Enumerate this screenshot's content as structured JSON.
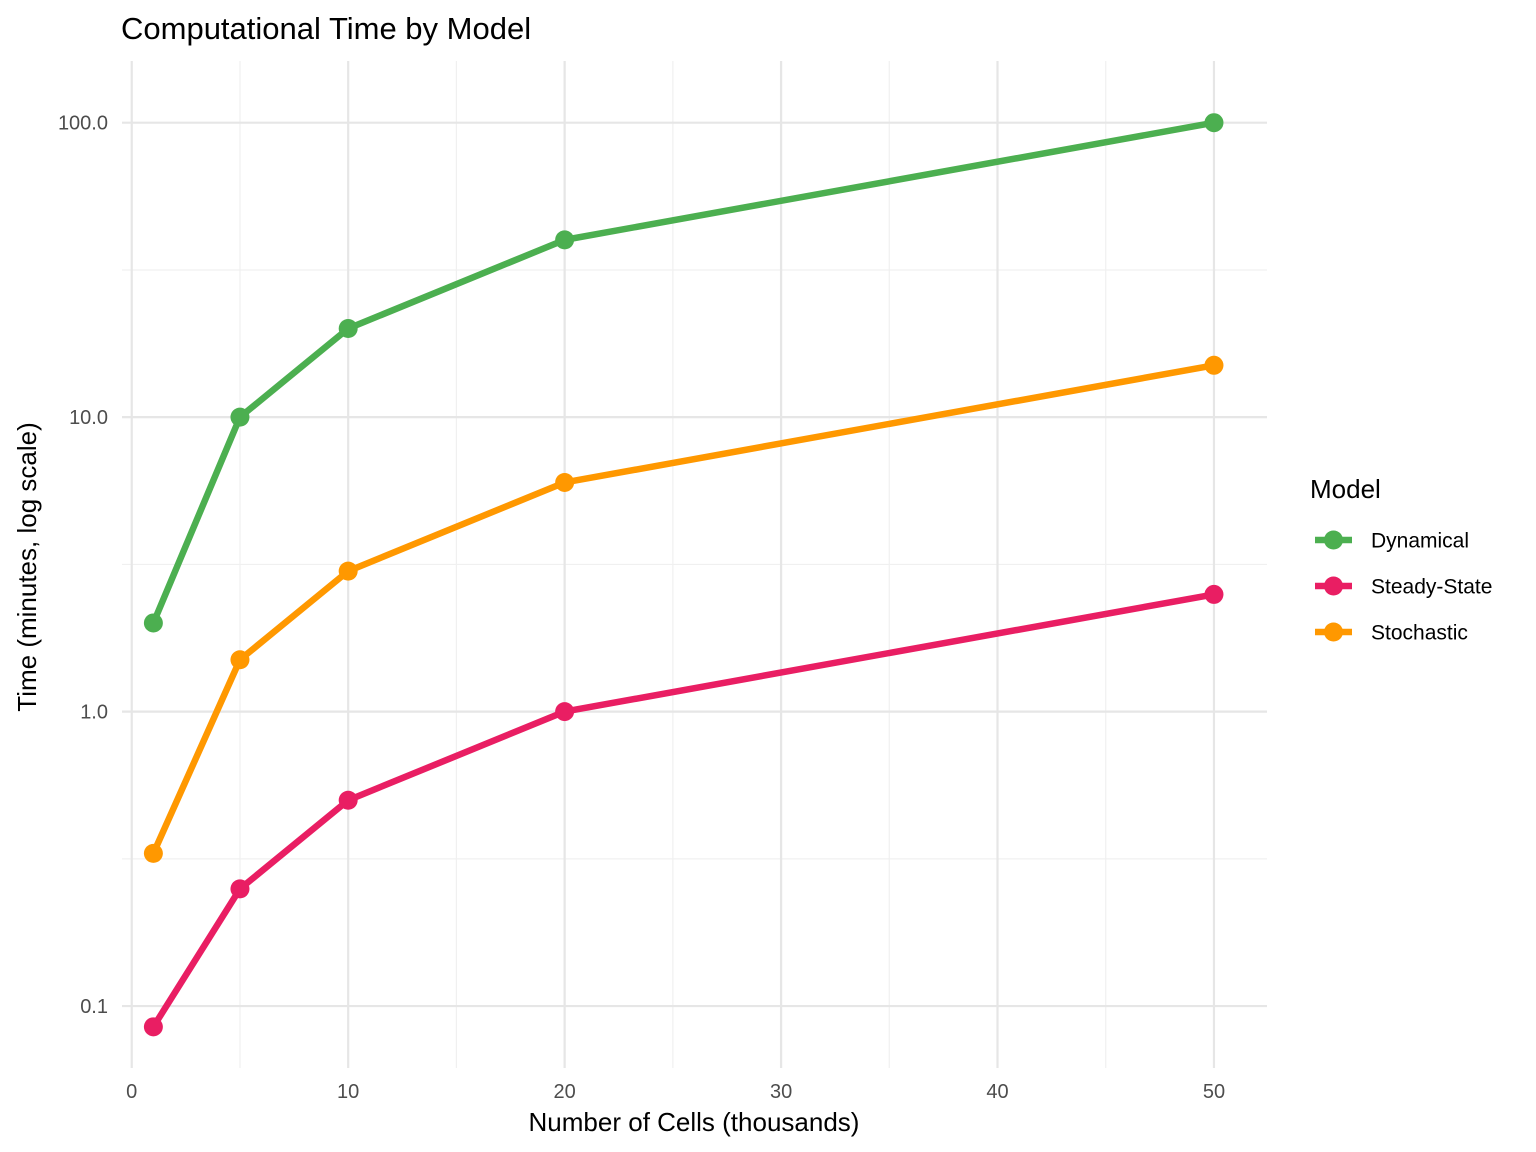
{
  "chart_data": {
    "type": "line",
    "title": "Computational Time by Model",
    "xlabel": "Number of Cells (thousands)",
    "ylabel": "Time (minutes, log scale)",
    "y_scale": "log10",
    "xlim": [
      -0.45,
      52.45
    ],
    "ylim": [
      0.0616,
      162
    ],
    "x_ticks": [
      0,
      10,
      20,
      30,
      40,
      50
    ],
    "x_tick_labels": [
      "0",
      "10",
      "20",
      "30",
      "40",
      "50"
    ],
    "x_minor_gridlines": [
      5,
      15,
      25,
      35,
      45
    ],
    "y_ticks": [
      0.1,
      1,
      10,
      100
    ],
    "y_tick_labels": [
      "0.1",
      "1.0",
      "10.0",
      "100.0"
    ],
    "y_minor_gridlines": [
      0.316,
      3.16,
      31.6
    ],
    "grid": true,
    "x": [
      1,
      5,
      10,
      20,
      50
    ],
    "series": [
      {
        "name": "Dynamical",
        "color": "#4caf50",
        "values": [
          2,
          10,
          20,
          40,
          100
        ]
      },
      {
        "name": "Steady-State",
        "color": "#e91e63",
        "values": [
          0.085,
          0.25,
          0.5,
          1,
          2.5
        ]
      },
      {
        "name": "Stochastic",
        "color": "#ff9800",
        "values": [
          0.33,
          1.5,
          3,
          6,
          15
        ]
      }
    ],
    "legend": {
      "title": "Model",
      "position": "right"
    }
  }
}
